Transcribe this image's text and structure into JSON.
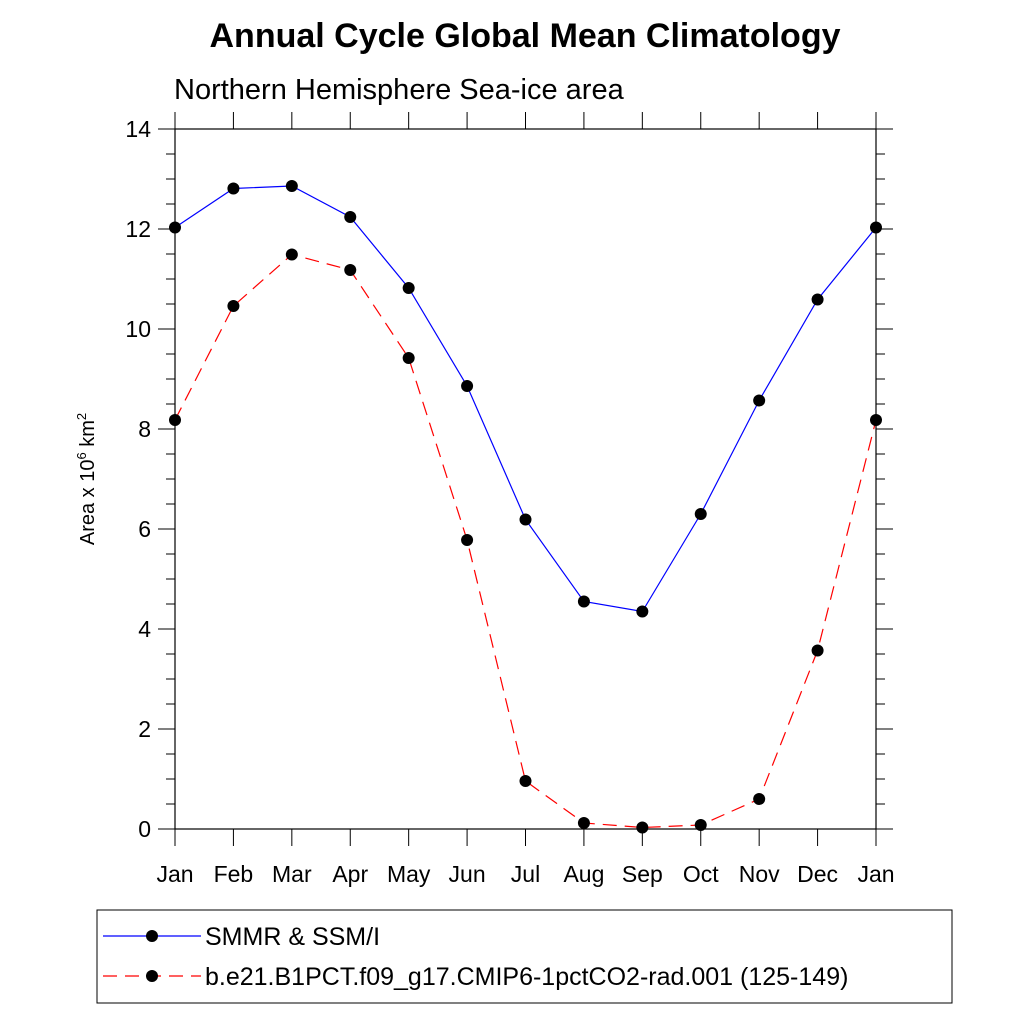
{
  "chart_data": {
    "type": "line",
    "title": "Annual Cycle Global Mean Climatology",
    "subtitle": "Northern Hemisphere Sea-ice area",
    "ylabel": {
      "prefix": "Area x 10",
      "exponent": "6",
      "unit": " km",
      "unit_exponent": "2"
    },
    "xlabel": "",
    "categories": [
      "Jan",
      "Feb",
      "Mar",
      "Apr",
      "May",
      "Jun",
      "Jul",
      "Aug",
      "Sep",
      "Oct",
      "Nov",
      "Dec",
      "Jan"
    ],
    "ylim": [
      0,
      14
    ],
    "yticks": [
      0,
      2,
      4,
      6,
      8,
      10,
      12,
      14
    ],
    "ytick_labels": [
      "0",
      "2",
      "4",
      "6",
      "8",
      "10",
      "12",
      "14"
    ],
    "grid": false,
    "legend_position": "bottom",
    "series": [
      {
        "name": "SMMR & SSM/I",
        "color": "#0000ff",
        "line_style": "solid",
        "marker": "filled-circle",
        "values": [
          12.03,
          12.81,
          12.86,
          12.24,
          10.82,
          8.86,
          6.19,
          4.55,
          4.35,
          6.3,
          8.57,
          10.59,
          12.03
        ]
      },
      {
        "name": "b.e21.B1PCT.f09_g17.CMIP6-1pctCO2-rad.001 (125-149)",
        "color": "#ff0000",
        "line_style": "dashed",
        "marker": "filled-circle",
        "values": [
          8.18,
          10.46,
          11.49,
          11.18,
          9.42,
          5.78,
          0.96,
          0.12,
          0.03,
          0.08,
          0.6,
          3.57,
          8.18
        ]
      }
    ]
  }
}
